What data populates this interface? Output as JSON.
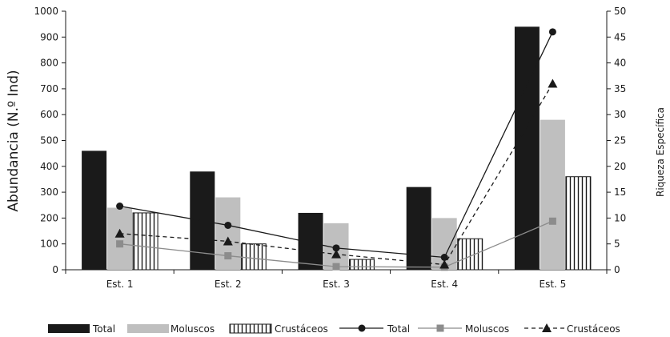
{
  "chart_data": {
    "type": "bar",
    "categories": [
      "Est. 1",
      "Est. 2",
      "Est. 3",
      "Est. 4",
      "Est. 5"
    ],
    "ylabel": "Abundancia (N.º Ind)",
    "y2label": "Riqueza Específica",
    "ylim": [
      0,
      1000
    ],
    "yticks": [
      0,
      100,
      200,
      300,
      400,
      500,
      600,
      700,
      800,
      900,
      1000
    ],
    "y2lim": [
      0,
      50
    ],
    "y2ticks": [
      0,
      5,
      10,
      15,
      20,
      25,
      30,
      35,
      40,
      45,
      50
    ],
    "bar_series": [
      {
        "name": "Total",
        "axis": "left",
        "values": [
          460,
          380,
          220,
          320,
          940
        ],
        "color": "#1a1a1a"
      },
      {
        "name": "Moluscos",
        "axis": "left",
        "values": [
          240,
          280,
          180,
          200,
          580
        ],
        "color": "#bfbfbf"
      },
      {
        "name": "Crustáceos",
        "axis": "left",
        "values": [
          220,
          100,
          40,
          120,
          360
        ],
        "color": "#ffffff"
      }
    ],
    "line_series": [
      {
        "name": "Total",
        "axis": "right",
        "values": [
          12.3,
          8.6,
          4.2,
          2.4,
          46
        ],
        "marker": "circle",
        "dash": "solid",
        "color": "#1a1a1a"
      },
      {
        "name": "Moluscos",
        "axis": "right",
        "values": [
          5,
          2.7,
          0.6,
          0.5,
          9.4
        ],
        "marker": "square",
        "dash": "solid",
        "color": "#8c8c8c"
      },
      {
        "name": "Crustáceos",
        "axis": "right",
        "values": [
          7,
          5.5,
          3,
          1,
          36
        ],
        "marker": "triangle",
        "dash": "dashed",
        "color": "#1a1a1a"
      }
    ],
    "legend": {
      "position": "bottom",
      "items": [
        {
          "label": "Total",
          "kind": "bar",
          "series": 0
        },
        {
          "label": "Moluscos",
          "kind": "bar",
          "series": 1
        },
        {
          "label": "Crustáceos",
          "kind": "bar",
          "series": 2
        },
        {
          "label": "Total",
          "kind": "line",
          "series": 0
        },
        {
          "label": "Moluscos",
          "kind": "line",
          "series": 1
        },
        {
          "label": "Crustáceos",
          "kind": "line",
          "series": 2
        }
      ]
    },
    "grid": false
  }
}
